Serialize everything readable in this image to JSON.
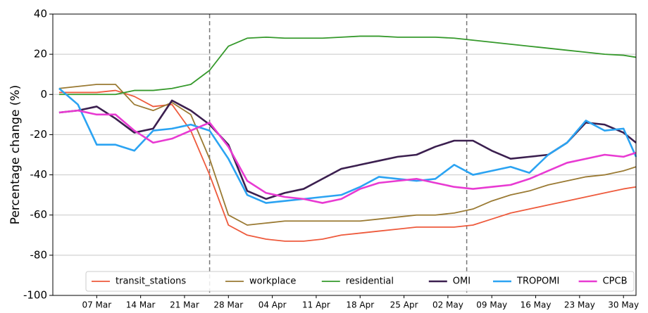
{
  "chart_data": {
    "type": "line",
    "ylabel": "Percentage change (%)",
    "x": [
      0,
      3,
      6,
      9,
      12,
      15,
      18,
      21,
      24,
      27,
      30,
      33,
      36,
      39,
      42,
      45,
      48,
      51,
      54,
      57,
      60,
      63,
      66,
      69,
      72,
      75,
      78,
      81,
      84,
      87,
      90,
      92
    ],
    "xlim": [
      -1,
      92
    ],
    "xticks": [
      {
        "value": 6,
        "label": "07 Mar"
      },
      {
        "value": 13,
        "label": "14 Mar"
      },
      {
        "value": 20,
        "label": "21 Mar"
      },
      {
        "value": 27,
        "label": "28 Mar"
      },
      {
        "value": 34,
        "label": "04 Apr"
      },
      {
        "value": 41,
        "label": "11 Apr"
      },
      {
        "value": 48,
        "label": "18 Apr"
      },
      {
        "value": 55,
        "label": "25 Apr"
      },
      {
        "value": 62,
        "label": "02 May"
      },
      {
        "value": 69,
        "label": "09 May"
      },
      {
        "value": 76,
        "label": "16 May"
      },
      {
        "value": 83,
        "label": "23 May"
      },
      {
        "value": 90,
        "label": "30 May"
      }
    ],
    "ylim": [
      -100,
      40
    ],
    "yticks": [
      -100,
      -80,
      -60,
      -40,
      -20,
      0,
      20,
      40
    ],
    "grid": true,
    "vlines": [
      24,
      65
    ],
    "legend": "bottom",
    "series": [
      {
        "name": "transit_stations",
        "color": "#ee5a3c",
        "values": [
          1,
          1,
          1,
          2,
          -1,
          -6,
          -5,
          -18,
          -40,
          -65,
          -70,
          -72,
          -73,
          -73,
          -72,
          -70,
          -69,
          -68,
          -67,
          -66,
          -66,
          -66,
          -65,
          -62,
          -59,
          -57,
          -55,
          -53,
          -51,
          -49,
          -47,
          -46
        ]
      },
      {
        "name": "workplace",
        "color": "#9a7a33",
        "values": [
          3,
          4,
          5,
          5,
          -5,
          -8,
          -4,
          -10,
          -32,
          -60,
          -65,
          -64,
          -63,
          -63,
          -63,
          -63,
          -63,
          -62,
          -61,
          -60,
          -60,
          -59,
          -57,
          -53,
          -50,
          -48,
          -45,
          -43,
          -41,
          -40,
          -38,
          -36
        ]
      },
      {
        "name": "residential",
        "color": "#35992b",
        "values": [
          0,
          0,
          0,
          0,
          2,
          2,
          3,
          5,
          12,
          24,
          28,
          28.5,
          28,
          28,
          28,
          28.5,
          29,
          29,
          28.5,
          28.5,
          28.5,
          28,
          27,
          26,
          25,
          24,
          23,
          22,
          21,
          20,
          19.5,
          18.5
        ]
      },
      {
        "name": "OMI",
        "color": "#3b1f4f",
        "values": [
          -9,
          -8,
          -6,
          -12,
          -19,
          -17,
          -3,
          -8,
          -15,
          -25,
          -48,
          -52,
          -49,
          -47,
          -42,
          -37,
          -35,
          -33,
          -31,
          -30,
          -26,
          -23,
          -23,
          -28,
          -32,
          -31,
          -30,
          -24,
          -14,
          -15,
          -19,
          -24
        ]
      },
      {
        "name": "TROPOMI",
        "color": "#2ba3f2",
        "values": [
          3,
          -5,
          -25,
          -25,
          -28,
          -18,
          -17,
          -15,
          -18,
          -32,
          -50,
          -54,
          -53,
          -52,
          -51,
          -50,
          -46,
          -41,
          -42,
          -43,
          -42,
          -35,
          -40,
          -38,
          -36,
          -39,
          -30,
          -24,
          -13,
          -18,
          -17,
          -31
        ]
      },
      {
        "name": "CPCB",
        "color": "#e83ad2",
        "values": [
          -9,
          -8,
          -10,
          -10,
          -18,
          -24,
          -22,
          -18,
          -14,
          -26,
          -43,
          -49,
          -51,
          -52,
          -54,
          -52,
          -47,
          -44,
          -43,
          -42,
          -44,
          -46,
          -47,
          -46,
          -45,
          -42,
          -38,
          -34,
          -32,
          -30,
          -31,
          -29
        ]
      }
    ]
  }
}
